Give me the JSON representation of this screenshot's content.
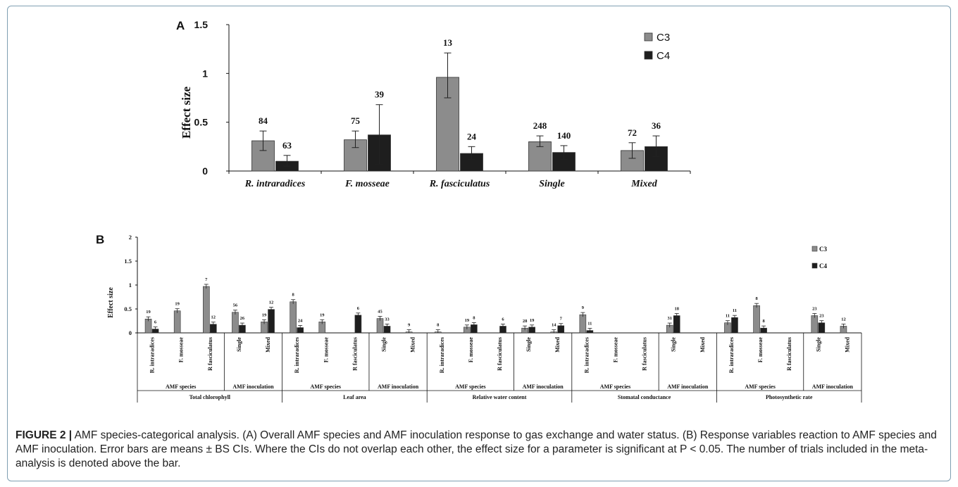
{
  "panel_a_letter": "A",
  "panel_b_letter": "B",
  "caption": {
    "lead": "FIGURE 2 |",
    "title": "AMF species-categorical analysis.",
    "text": "(A) Overall AMF species and AMF inoculation response to gas exchange and water status. (B) Response variables reaction to AMF species and AMF inoculation. Error bars are means ± BS CIs. Where the CIs do not overlap each other, the effect size for a parameter is significant at P < 0.05. The number of trials included in the meta-analysis is denoted above the bar."
  },
  "colors": {
    "c3": "#8c8c8c",
    "c4": "#1e1e1e"
  },
  "chart_data": [
    {
      "type": "bar",
      "ylabel": "Effect size",
      "ylim": [
        0,
        1.5
      ],
      "yticks": [
        "0",
        "0.5",
        "1",
        "1.5"
      ],
      "categories": [
        "R. intraradices",
        "F. mosseae",
        "R. fasciculatus",
        "Single",
        "Mixed"
      ],
      "legend_position": "top-right",
      "series": [
        {
          "name": "C3",
          "values": [
            0.31,
            0.32,
            0.96,
            0.3,
            0.21
          ],
          "ci_low": [
            0.21,
            0.24,
            0.75,
            0.25,
            0.13
          ],
          "ci_high": [
            0.41,
            0.41,
            1.21,
            0.36,
            0.29
          ],
          "n": [
            "84",
            "75",
            "13",
            "248",
            "72"
          ]
        },
        {
          "name": "C4",
          "values": [
            0.1,
            0.37,
            0.18,
            0.19,
            0.25
          ],
          "ci_low": [
            0.05,
            0.07,
            0.12,
            0.12,
            0.15
          ],
          "ci_high": [
            0.16,
            0.68,
            0.25,
            0.26,
            0.36
          ],
          "n": [
            "63",
            "39",
            "24",
            "140",
            "36"
          ]
        }
      ]
    },
    {
      "type": "bar",
      "ylabel": "Effect size",
      "ylim": [
        0,
        2
      ],
      "yticks": [
        "0",
        "0.5",
        "1",
        "1.5",
        "2"
      ],
      "legend_position": "top-right",
      "series_names": [
        "C3",
        "C4"
      ],
      "groups": [
        {
          "name": "Total chlorophyll",
          "subgroups": [
            {
              "name": "AMF species",
              "items": [
                {
                  "label": "R. intraradices",
                  "c3": 0.29,
                  "c4": 0.08,
                  "n3": "19",
                  "n4": "6"
                },
                {
                  "label": "F. mosseae",
                  "c3": 0.46,
                  "c4": null,
                  "n3": "19",
                  "n4": ""
                },
                {
                  "label": "R fasciculatus",
                  "c3": 0.97,
                  "c4": 0.18,
                  "n3": "7",
                  "n4": "12"
                }
              ]
            },
            {
              "name": "AMF inoculation",
              "items": [
                {
                  "label": "Single",
                  "c3": 0.43,
                  "c4": 0.16,
                  "n3": "56",
                  "n4": "26"
                },
                {
                  "label": "Mixed",
                  "c3": 0.23,
                  "c4": 0.49,
                  "n3": "19",
                  "n4": "12"
                }
              ]
            }
          ]
        },
        {
          "name": "Leaf area",
          "subgroups": [
            {
              "name": "AMF species",
              "items": [
                {
                  "label": "R. intraradices",
                  "c3": 0.65,
                  "c4": 0.11,
                  "n3": "8",
                  "n4": "24"
                },
                {
                  "label": "F. mosseae",
                  "c3": 0.23,
                  "c4": null,
                  "n3": "19",
                  "n4": ""
                },
                {
                  "label": "R fasciculatus",
                  "c3": null,
                  "c4": 0.37,
                  "n3": "",
                  "n4": "6"
                }
              ]
            },
            {
              "name": "AMF inoculation",
              "items": [
                {
                  "label": "Single",
                  "c3": 0.3,
                  "c4": 0.14,
                  "n3": "45",
                  "n4": "33"
                },
                {
                  "label": "Mixed",
                  "c3": 0.02,
                  "c4": null,
                  "n3": "9",
                  "n4": ""
                }
              ]
            }
          ]
        },
        {
          "name": "Relative water content",
          "subgroups": [
            {
              "name": "AMF species",
              "items": [
                {
                  "label": "R. intraradices",
                  "c3": 0.02,
                  "c4": null,
                  "n3": "8",
                  "n4": ""
                },
                {
                  "label": "F. mosseae",
                  "c3": 0.12,
                  "c4": 0.17,
                  "n3": "19",
                  "n4": "8"
                },
                {
                  "label": "R fasciculatus",
                  "c3": null,
                  "c4": 0.14,
                  "n3": "",
                  "n4": "6"
                }
              ]
            },
            {
              "name": "AMF inoculation",
              "items": [
                {
                  "label": "Single",
                  "c3": 0.1,
                  "c4": 0.12,
                  "n3": "28",
                  "n4": "19"
                },
                {
                  "label": "Mixed",
                  "c3": 0.02,
                  "c4": 0.15,
                  "n3": "14",
                  "n4": "7"
                }
              ]
            }
          ]
        },
        {
          "name": "Stomatal conductance",
          "subgroups": [
            {
              "name": "AMF species",
              "items": [
                {
                  "label": "R. intraradices",
                  "c3": 0.38,
                  "c4": 0.05,
                  "n3": "9",
                  "n4": "11"
                },
                {
                  "label": "F. mosseae",
                  "c3": null,
                  "c4": null,
                  "n3": "",
                  "n4": ""
                },
                {
                  "label": "R fasciculatus",
                  "c3": null,
                  "c4": null,
                  "n3": "",
                  "n4": ""
                }
              ]
            },
            {
              "name": "AMF inoculation",
              "items": [
                {
                  "label": "Single",
                  "c3": 0.16,
                  "c4": 0.36,
                  "n3": "31",
                  "n4": "18"
                },
                {
                  "label": "Mixed",
                  "c3": null,
                  "c4": null,
                  "n3": "",
                  "n4": ""
                }
              ]
            }
          ]
        },
        {
          "name": "Photosynthetic rate",
          "subgroups": [
            {
              "name": "AMF species",
              "items": [
                {
                  "label": "R. intraradices",
                  "c3": 0.21,
                  "c4": 0.32,
                  "n3": "11",
                  "n4": "11"
                },
                {
                  "label": "F. mosseae",
                  "c3": 0.57,
                  "c4": 0.1,
                  "n3": "8",
                  "n4": "8"
                },
                {
                  "label": "R fasciculatus",
                  "c3": null,
                  "c4": null,
                  "n3": "",
                  "n4": ""
                }
              ]
            },
            {
              "name": "AMF inoculation",
              "items": [
                {
                  "label": "Single",
                  "c3": 0.36,
                  "c4": 0.21,
                  "n3": "23",
                  "n4": "23"
                },
                {
                  "label": "Mixed",
                  "c3": 0.14,
                  "c4": null,
                  "n3": "12",
                  "n4": ""
                }
              ]
            }
          ]
        }
      ]
    }
  ]
}
